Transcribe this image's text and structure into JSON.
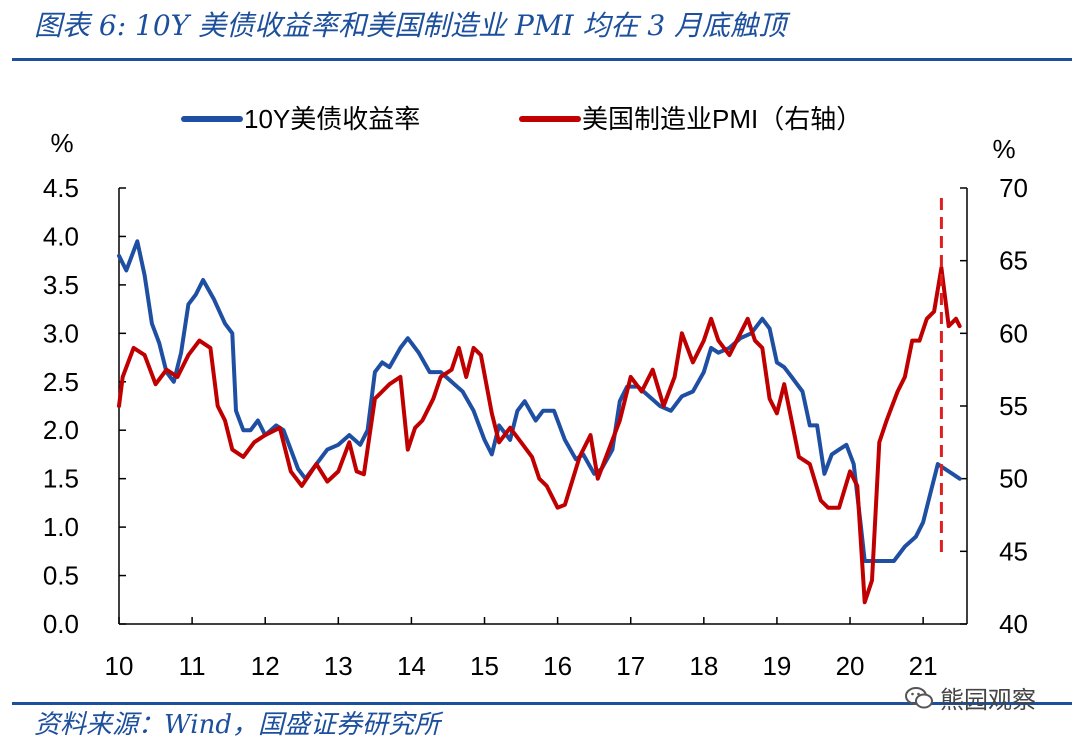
{
  "figure": {
    "title": "图表 6:  10Y 美债收益率和美国制造业 PMI 均在 3 月底触顶",
    "source": "资料来源：Wind，国盛证券研究所",
    "watermark": "熊园观察",
    "watermark_icon": "wechat-icon"
  },
  "chart_data": {
    "type": "line",
    "legend_position": "top",
    "grid": false,
    "x_ticks": [
      "10",
      "11",
      "12",
      "13",
      "14",
      "15",
      "16",
      "17",
      "18",
      "19",
      "20",
      "21"
    ],
    "xlim": [
      2010,
      2021.6
    ],
    "left_axis": {
      "unit": "%",
      "ylim": [
        0,
        4.5
      ],
      "ticks": [
        "0.0",
        "0.5",
        "1.0",
        "1.5",
        "2.0",
        "2.5",
        "3.0",
        "3.5",
        "4.0",
        "4.5"
      ]
    },
    "right_axis": {
      "unit": "%",
      "ylim": [
        40,
        70
      ],
      "ticks": [
        "40",
        "45",
        "50",
        "55",
        "60",
        "65",
        "70"
      ]
    },
    "marker_line": {
      "x": 2021.25,
      "style": "dashed",
      "color": "#e02020"
    },
    "series": [
      {
        "name": "10Y美债收益率",
        "axis": "left",
        "color": "#1f4fa3",
        "x": [
          2010.0,
          2010.1,
          2010.25,
          2010.35,
          2010.45,
          2010.55,
          2010.65,
          2010.75,
          2010.85,
          2010.95,
          2011.05,
          2011.15,
          2011.3,
          2011.45,
          2011.55,
          2011.6,
          2011.7,
          2011.8,
          2011.9,
          2012.0,
          2012.15,
          2012.25,
          2012.35,
          2012.45,
          2012.55,
          2012.7,
          2012.85,
          2013.0,
          2013.15,
          2013.3,
          2013.4,
          2013.5,
          2013.6,
          2013.7,
          2013.85,
          2013.95,
          2014.1,
          2014.25,
          2014.4,
          2014.55,
          2014.7,
          2014.85,
          2015.0,
          2015.1,
          2015.2,
          2015.35,
          2015.45,
          2015.55,
          2015.7,
          2015.8,
          2015.95,
          2016.1,
          2016.25,
          2016.35,
          2016.5,
          2016.6,
          2016.75,
          2016.85,
          2016.95,
          2017.1,
          2017.25,
          2017.4,
          2017.55,
          2017.7,
          2017.85,
          2018.0,
          2018.1,
          2018.2,
          2018.35,
          2018.5,
          2018.65,
          2018.8,
          2018.9,
          2019.0,
          2019.1,
          2019.2,
          2019.35,
          2019.45,
          2019.55,
          2019.65,
          2019.75,
          2019.85,
          2019.95,
          2020.05,
          2020.15,
          2020.2,
          2020.3,
          2020.45,
          2020.6,
          2020.75,
          2020.9,
          2021.0,
          2021.1,
          2021.2,
          2021.3,
          2021.4,
          2021.5
        ],
        "values": [
          3.8,
          3.65,
          3.95,
          3.6,
          3.1,
          2.9,
          2.6,
          2.5,
          2.8,
          3.3,
          3.4,
          3.55,
          3.35,
          3.1,
          3.0,
          2.2,
          2.0,
          2.0,
          2.1,
          1.95,
          2.05,
          2.0,
          1.8,
          1.6,
          1.5,
          1.65,
          1.8,
          1.85,
          1.95,
          1.85,
          2.0,
          2.6,
          2.7,
          2.65,
          2.85,
          2.95,
          2.8,
          2.6,
          2.6,
          2.5,
          2.4,
          2.2,
          1.9,
          1.75,
          2.05,
          1.9,
          2.2,
          2.3,
          2.1,
          2.2,
          2.2,
          1.9,
          1.7,
          1.75,
          1.55,
          1.6,
          1.8,
          2.3,
          2.45,
          2.45,
          2.35,
          2.25,
          2.2,
          2.35,
          2.4,
          2.6,
          2.85,
          2.8,
          2.85,
          2.95,
          3.0,
          3.15,
          3.05,
          2.7,
          2.65,
          2.55,
          2.4,
          2.05,
          2.05,
          1.55,
          1.75,
          1.8,
          1.85,
          1.65,
          1.0,
          0.65,
          0.65,
          0.65,
          0.65,
          0.8,
          0.9,
          1.05,
          1.35,
          1.65,
          1.6,
          1.55,
          1.5
        ]
      },
      {
        "name": "美国制造业PMI（右轴）",
        "axis": "right",
        "color": "#c00000",
        "x": [
          2010.0,
          2010.05,
          2010.2,
          2010.35,
          2010.5,
          2010.65,
          2010.8,
          2010.95,
          2011.1,
          2011.25,
          2011.35,
          2011.45,
          2011.55,
          2011.7,
          2011.85,
          2012.0,
          2012.2,
          2012.35,
          2012.5,
          2012.7,
          2012.85,
          2013.0,
          2013.15,
          2013.25,
          2013.35,
          2013.5,
          2013.6,
          2013.7,
          2013.85,
          2013.95,
          2014.05,
          2014.15,
          2014.3,
          2014.4,
          2014.55,
          2014.65,
          2014.75,
          2014.85,
          2014.95,
          2015.1,
          2015.2,
          2015.35,
          2015.5,
          2015.65,
          2015.75,
          2015.85,
          2016.0,
          2016.1,
          2016.3,
          2016.45,
          2016.55,
          2016.7,
          2016.85,
          2017.0,
          2017.15,
          2017.3,
          2017.45,
          2017.6,
          2017.7,
          2017.85,
          2018.0,
          2018.1,
          2018.2,
          2018.35,
          2018.5,
          2018.6,
          2018.7,
          2018.8,
          2018.9,
          2019.0,
          2019.1,
          2019.2,
          2019.3,
          2019.45,
          2019.6,
          2019.7,
          2019.85,
          2020.0,
          2020.1,
          2020.2,
          2020.3,
          2020.4,
          2020.5,
          2020.65,
          2020.75,
          2020.85,
          2020.95,
          2021.05,
          2021.15,
          2021.25,
          2021.35,
          2021.45,
          2021.5
        ],
        "values": [
          55.0,
          57.0,
          59.0,
          58.5,
          56.5,
          57.5,
          57.0,
          58.5,
          59.5,
          59.0,
          55.0,
          54.0,
          52.0,
          51.5,
          52.5,
          53.0,
          53.5,
          50.5,
          49.5,
          51.0,
          49.8,
          50.5,
          52.5,
          50.5,
          50.3,
          55.5,
          56.0,
          56.5,
          57.0,
          52.0,
          53.5,
          54.0,
          55.5,
          57.0,
          57.5,
          59.0,
          57.0,
          59.0,
          58.5,
          54.5,
          52.5,
          53.5,
          52.5,
          51.5,
          50.0,
          49.5,
          48.0,
          48.2,
          51.5,
          53.0,
          50.0,
          52.0,
          54.0,
          57.0,
          56.0,
          57.5,
          55.0,
          57.0,
          60.0,
          58.0,
          59.5,
          61.0,
          59.5,
          58.5,
          60.0,
          61.0,
          59.5,
          59.0,
          55.5,
          54.5,
          56.5,
          54.0,
          51.5,
          51.0,
          48.5,
          48.0,
          48.0,
          50.5,
          49.5,
          41.5,
          43.0,
          52.5,
          54.0,
          56.0,
          57.0,
          59.5,
          59.5,
          61.0,
          61.5,
          64.5,
          60.5,
          61.0,
          60.5
        ]
      }
    ]
  }
}
